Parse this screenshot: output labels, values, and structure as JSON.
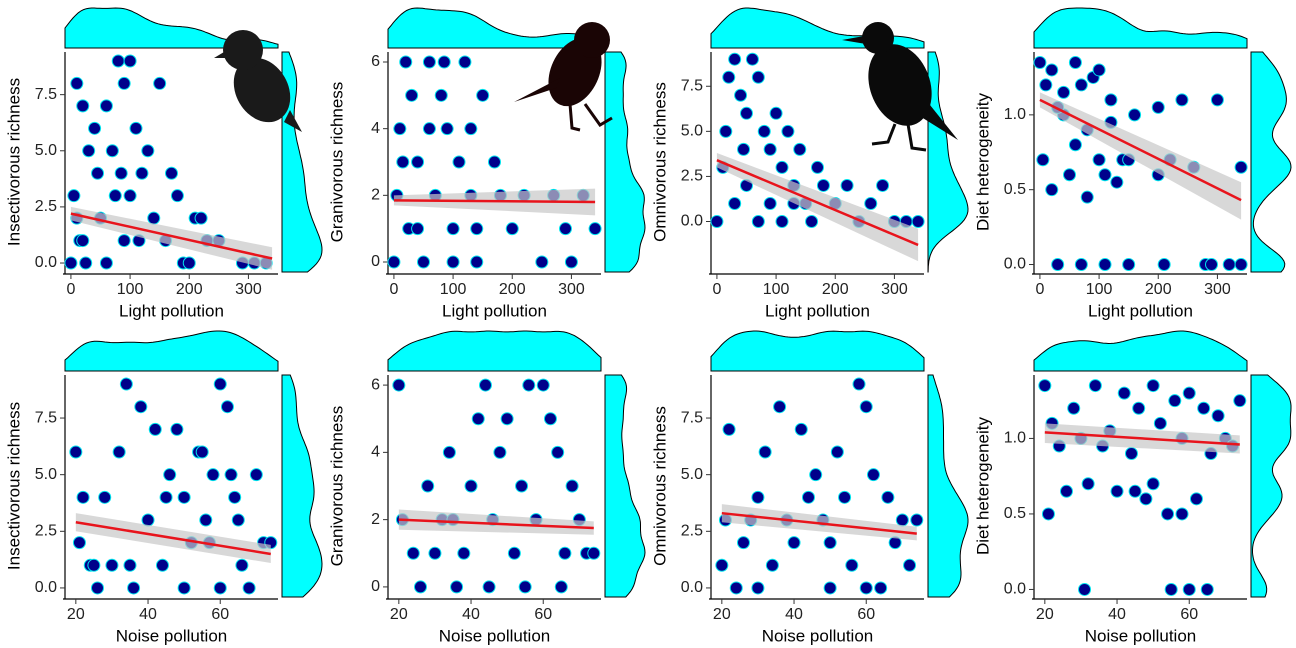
{
  "chart_data": [
    {
      "type": "scatter",
      "xlabel": "Light pollution",
      "ylabel": "Insectivorous richness",
      "xlim": [
        -10,
        350
      ],
      "xticks": [
        0,
        100,
        200,
        300
      ],
      "ylim": [
        -0.4,
        9.4
      ],
      "yticks": [
        {
          "value": 0,
          "label": "0.0"
        },
        {
          "value": 2.5,
          "label": "2.5"
        },
        {
          "value": 5,
          "label": "5.0"
        },
        {
          "value": 7.5,
          "label": "7.5"
        }
      ],
      "series": [
        {
          "color": "#00008b",
          "edgecolor": "#00e5ee",
          "x": [
            0,
            5,
            10,
            15,
            20,
            25,
            30,
            40,
            45,
            50,
            60,
            60,
            70,
            75,
            80,
            90,
            90,
            100,
            100,
            110,
            115,
            120,
            130,
            140,
            150,
            160,
            170,
            180,
            190,
            200,
            210,
            220,
            230,
            250,
            290,
            310,
            330,
            20,
            10,
            85
          ],
          "y": [
            0,
            3,
            8,
            1,
            7,
            0,
            5,
            6,
            4,
            2,
            7,
            0,
            5,
            3,
            9,
            8,
            1,
            9,
            3,
            6,
            1,
            4,
            5,
            2,
            8,
            1,
            4,
            3,
            0,
            0,
            2,
            2,
            1,
            1,
            0,
            0,
            0,
            1,
            2,
            4
          ]
        }
      ],
      "fit": {
        "color": "#e8141c",
        "band_color": "#c8c8c8",
        "x": [
          0,
          340
        ],
        "y": [
          2.2,
          0.2
        ],
        "lower": [
          1.9,
          -0.3
        ],
        "upper": [
          2.5,
          0.7
        ]
      },
      "marginal_color": "#00ffff"
    },
    {
      "type": "scatter",
      "xlabel": "Light pollution",
      "ylabel": "Granivorous richness",
      "xlim": [
        -10,
        350
      ],
      "xticks": [
        0,
        100,
        200,
        300
      ],
      "ylim": [
        -0.3,
        6.3
      ],
      "yticks": [
        0,
        2,
        4,
        6
      ],
      "series": [
        {
          "color": "#00008b",
          "edgecolor": "#00e5ee",
          "x": [
            0,
            5,
            10,
            20,
            25,
            30,
            40,
            50,
            60,
            70,
            80,
            90,
            100,
            110,
            120,
            130,
            140,
            150,
            170,
            180,
            200,
            220,
            250,
            270,
            290,
            300,
            320,
            340,
            60,
            100,
            40,
            15,
            130,
            85,
            140
          ],
          "y": [
            0,
            2,
            4,
            6,
            1,
            5,
            3,
            0,
            6,
            2,
            5,
            4,
            1,
            3,
            6,
            4,
            0,
            5,
            3,
            2,
            1,
            2,
            0,
            2,
            1,
            0,
            2,
            1,
            4,
            0,
            1,
            3,
            2,
            6,
            1
          ]
        }
      ],
      "fit": {
        "color": "#e8141c",
        "band_color": "#c8c8c8",
        "x": [
          0,
          340
        ],
        "y": [
          1.85,
          1.8
        ],
        "lower": [
          1.7,
          1.4
        ],
        "upper": [
          2.0,
          2.2
        ]
      },
      "marginal_color": "#00ffff"
    },
    {
      "type": "scatter",
      "xlabel": "Light pollution",
      "ylabel": "Omnivorous richness",
      "xlim": [
        -10,
        350
      ],
      "xticks": [
        0,
        100,
        200,
        300
      ],
      "ylim": [
        -2.8,
        9.4
      ],
      "yticks": [
        {
          "value": 0,
          "label": "0.0"
        },
        {
          "value": 2.5,
          "label": "2.5"
        },
        {
          "value": 5,
          "label": "5.0"
        },
        {
          "value": 7.5,
          "label": "7.5"
        }
      ],
      "series": [
        {
          "color": "#00008b",
          "edgecolor": "#00e5ee",
          "x": [
            0,
            10,
            20,
            30,
            40,
            50,
            60,
            70,
            80,
            90,
            100,
            110,
            120,
            130,
            140,
            150,
            160,
            170,
            180,
            200,
            220,
            240,
            260,
            280,
            300,
            320,
            340,
            30,
            50,
            70,
            90,
            15,
            45,
            130,
            110
          ],
          "y": [
            0,
            3,
            8,
            9,
            7,
            6,
            9,
            8,
            5,
            4,
            6,
            3,
            5,
            2,
            4,
            1,
            0,
            3,
            2,
            1,
            2,
            0,
            1,
            2,
            0,
            0,
            0,
            1,
            2,
            0,
            1,
            5,
            4,
            1,
            0
          ]
        }
      ],
      "fit": {
        "color": "#e8141c",
        "band_color": "#c8c8c8",
        "x": [
          0,
          340
        ],
        "y": [
          3.4,
          -1.3
        ],
        "lower": [
          3.0,
          -2.2
        ],
        "upper": [
          3.8,
          -0.4
        ]
      },
      "marginal_color": "#00ffff"
    },
    {
      "type": "scatter",
      "xlabel": "Light pollution",
      "ylabel": "Diet heterogeneity",
      "xlim": [
        -10,
        350
      ],
      "xticks": [
        0,
        100,
        200,
        300
      ],
      "ylim": [
        -0.05,
        1.42
      ],
      "yticks": [
        {
          "value": 0,
          "label": "0.0"
        },
        {
          "value": 0.5,
          "label": "0.5"
        },
        {
          "value": 1,
          "label": "1.0"
        }
      ],
      "series": [
        {
          "color": "#00008b",
          "edgecolor": "#00e5ee",
          "x": [
            0,
            5,
            10,
            20,
            30,
            40,
            50,
            60,
            70,
            80,
            90,
            100,
            110,
            120,
            130,
            140,
            150,
            160,
            200,
            220,
            240,
            260,
            280,
            300,
            340,
            20,
            40,
            60,
            80,
            100,
            120,
            30,
            70,
            110,
            150,
            200,
            210,
            290,
            320,
            340
          ],
          "y": [
            1.35,
            0.7,
            1.2,
            1.3,
            0,
            1.0,
            0.6,
            1.35,
            0,
            0.9,
            1.25,
            0.7,
            0,
            1.1,
            0.55,
            0.7,
            0,
            1.0,
            1.05,
            0.7,
            1.1,
            0.65,
            0,
            1.1,
            0.65,
            0.5,
            1.15,
            0.8,
            0.45,
            1.3,
            0.95,
            1.05,
            1.2,
            0.6,
            0.7,
            0.6,
            0,
            0,
            0,
            0
          ]
        }
      ],
      "fit": {
        "color": "#e8141c",
        "band_color": "#c8c8c8",
        "x": [
          0,
          340
        ],
        "y": [
          1.1,
          0.43
        ],
        "lower": [
          1.05,
          0.3
        ],
        "upper": [
          1.15,
          0.55
        ]
      },
      "marginal_color": "#00ffff"
    },
    {
      "type": "scatter",
      "xlabel": "Noise pollution",
      "ylabel": "Insectivorous richness",
      "xlim": [
        17,
        76
      ],
      "xticks": [
        20,
        40,
        60
      ],
      "ylim": [
        -0.4,
        9.4
      ],
      "yticks": [
        {
          "value": 0,
          "label": "0.0"
        },
        {
          "value": 2.5,
          "label": "2.5"
        },
        {
          "value": 5,
          "label": "5.0"
        },
        {
          "value": 7.5,
          "label": "7.5"
        }
      ],
      "series": [
        {
          "color": "#00008b",
          "edgecolor": "#00e5ee",
          "x": [
            20,
            21,
            22,
            24,
            26,
            28,
            30,
            32,
            34,
            36,
            38,
            40,
            42,
            44,
            46,
            48,
            50,
            52,
            54,
            56,
            58,
            60,
            62,
            64,
            66,
            68,
            70,
            72,
            74,
            35,
            45,
            55,
            60,
            65,
            25,
            50,
            57,
            63
          ],
          "y": [
            6,
            2,
            4,
            1,
            0,
            4,
            1,
            6,
            9,
            0,
            8,
            3,
            7,
            1,
            5,
            7,
            4,
            2,
            6,
            3,
            5,
            9,
            8,
            4,
            1,
            0,
            5,
            2,
            2,
            1,
            4,
            6,
            0,
            3,
            1,
            0,
            2,
            5
          ]
        }
      ],
      "fit": {
        "color": "#e8141c",
        "band_color": "#c8c8c8",
        "x": [
          20,
          74
        ],
        "y": [
          2.9,
          1.5
        ],
        "lower": [
          2.5,
          1.1
        ],
        "upper": [
          3.3,
          1.9
        ]
      },
      "marginal_color": "#00ffff"
    },
    {
      "type": "scatter",
      "xlabel": "Noise pollution",
      "ylabel": "Granivorous richness",
      "xlim": [
        17,
        76
      ],
      "xticks": [
        20,
        40,
        60
      ],
      "ylim": [
        -0.3,
        6.3
      ],
      "yticks": [
        0,
        2,
        4,
        6
      ],
      "series": [
        {
          "color": "#00008b",
          "edgecolor": "#00e5ee",
          "x": [
            20,
            21,
            24,
            26,
            28,
            30,
            32,
            34,
            36,
            38,
            40,
            42,
            44,
            46,
            48,
            50,
            52,
            54,
            56,
            58,
            60,
            62,
            64,
            66,
            68,
            70,
            72,
            74,
            45,
            55,
            65,
            35
          ],
          "y": [
            6,
            2,
            1,
            0,
            3,
            1,
            2,
            4,
            0,
            1,
            3,
            5,
            6,
            2,
            4,
            5,
            1,
            3,
            6,
            2,
            6,
            5,
            4,
            1,
            3,
            2,
            1,
            1,
            0,
            0,
            0,
            2
          ]
        }
      ],
      "fit": {
        "color": "#e8141c",
        "band_color": "#c8c8c8",
        "x": [
          20,
          74
        ],
        "y": [
          2.0,
          1.75
        ],
        "lower": [
          1.7,
          1.55
        ],
        "upper": [
          2.3,
          1.95
        ]
      },
      "marginal_color": "#00ffff"
    },
    {
      "type": "scatter",
      "xlabel": "Noise pollution",
      "ylabel": "Omnivorous richness",
      "xlim": [
        17,
        76
      ],
      "xticks": [
        20,
        40,
        60
      ],
      "ylim": [
        -0.4,
        9.4
      ],
      "yticks": [
        {
          "value": 0,
          "label": "0.0"
        },
        {
          "value": 2.5,
          "label": "2.5"
        },
        {
          "value": 5,
          "label": "5.0"
        },
        {
          "value": 7.5,
          "label": "7.5"
        }
      ],
      "series": [
        {
          "color": "#00008b",
          "edgecolor": "#00e5ee",
          "x": [
            20,
            21,
            22,
            24,
            26,
            28,
            30,
            32,
            34,
            36,
            38,
            40,
            42,
            44,
            46,
            48,
            50,
            52,
            54,
            56,
            58,
            60,
            62,
            64,
            66,
            68,
            70,
            72,
            74,
            50,
            60,
            30
          ],
          "y": [
            1,
            3,
            7,
            0,
            2,
            3,
            4,
            6,
            1,
            8,
            3,
            2,
            7,
            4,
            5,
            3,
            2,
            6,
            4,
            1,
            9,
            8,
            5,
            0,
            4,
            2,
            3,
            1,
            3,
            0,
            0,
            0
          ]
        }
      ],
      "fit": {
        "color": "#e8141c",
        "band_color": "#c8c8c8",
        "x": [
          20,
          74
        ],
        "y": [
          3.3,
          2.4
        ],
        "lower": [
          2.9,
          2.1
        ],
        "upper": [
          3.7,
          2.7
        ]
      },
      "marginal_color": "#00ffff"
    },
    {
      "type": "scatter",
      "xlabel": "Noise pollution",
      "ylabel": "Diet heterogeneity",
      "xlim": [
        17,
        76
      ],
      "xticks": [
        20,
        40,
        60
      ],
      "ylim": [
        -0.05,
        1.42
      ],
      "yticks": [
        {
          "value": 0,
          "label": "0.0"
        },
        {
          "value": 0.5,
          "label": "0.5"
        },
        {
          "value": 1,
          "label": "1.0"
        }
      ],
      "series": [
        {
          "color": "#00008b",
          "edgecolor": "#00e5ee",
          "x": [
            20,
            21,
            22,
            24,
            26,
            28,
            30,
            32,
            34,
            36,
            38,
            40,
            42,
            44,
            46,
            48,
            50,
            52,
            54,
            56,
            58,
            60,
            62,
            64,
            66,
            68,
            70,
            72,
            74,
            31,
            55,
            60,
            65,
            45,
            50,
            58
          ],
          "y": [
            1.35,
            0.5,
            1.1,
            0.95,
            0.65,
            1.2,
            1.0,
            0.7,
            1.35,
            0.95,
            1.05,
            0.65,
            1.3,
            0.9,
            1.2,
            0.6,
            1.35,
            1.1,
            0.5,
            1.25,
            1.0,
            1.3,
            0.6,
            1.2,
            0.9,
            1.15,
            1.0,
            0.95,
            1.25,
            0,
            0,
            0,
            0,
            0.65,
            0.7,
            0.5
          ]
        }
      ],
      "fit": {
        "color": "#e8141c",
        "band_color": "#c8c8c8",
        "x": [
          20,
          74
        ],
        "y": [
          1.04,
          0.96
        ],
        "lower": [
          0.97,
          0.9
        ],
        "upper": [
          1.1,
          1.02
        ]
      },
      "marginal_color": "#00ffff"
    }
  ]
}
